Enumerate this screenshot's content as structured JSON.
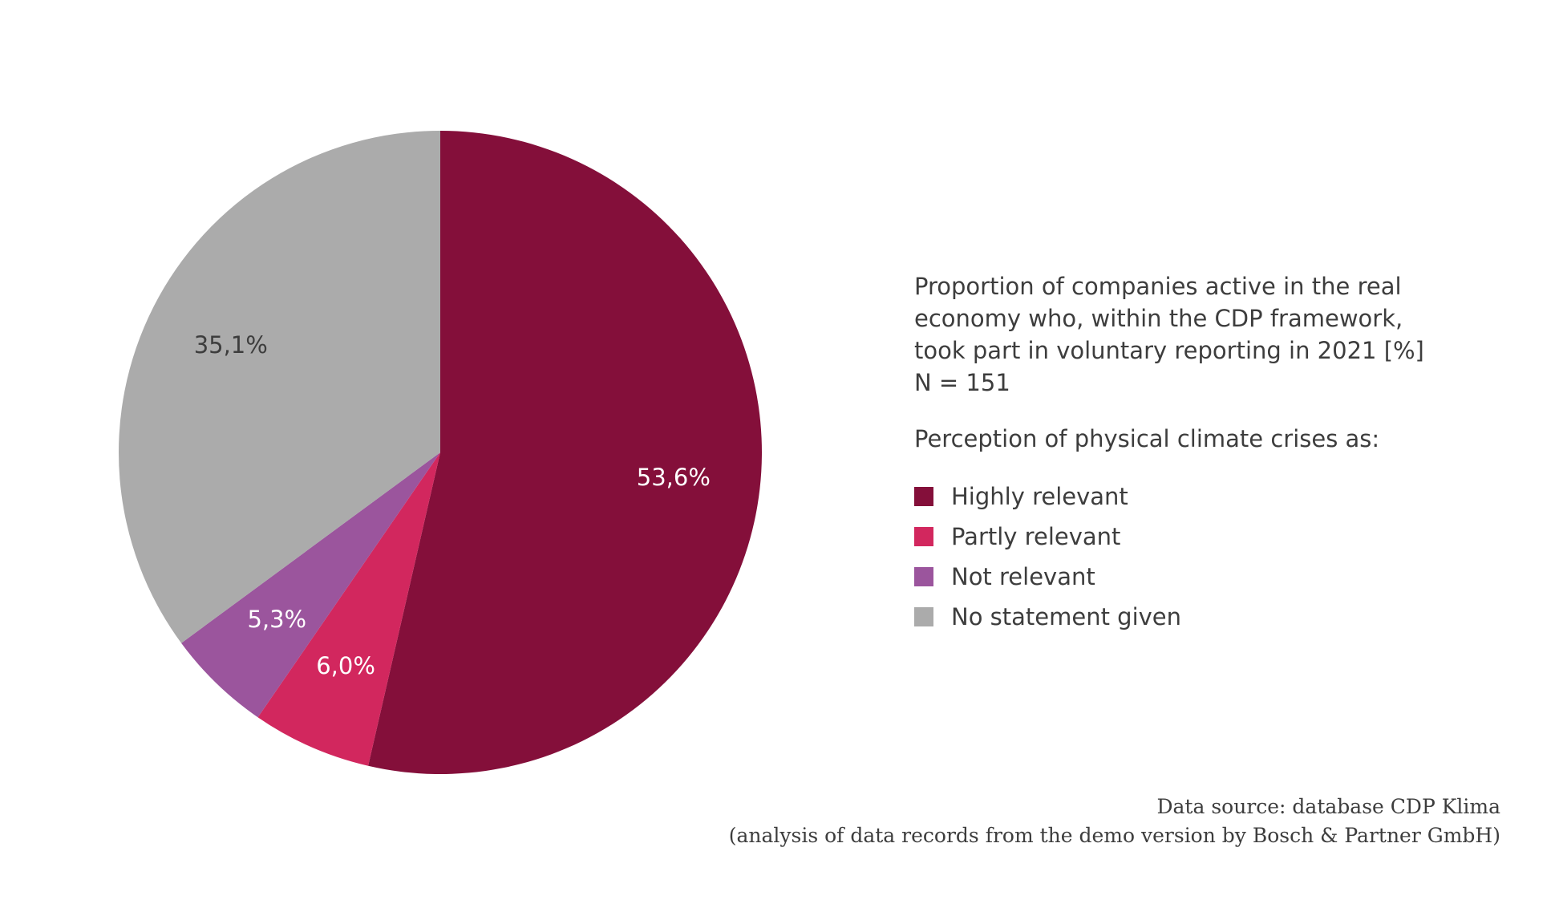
{
  "chart_data": {
    "type": "pie",
    "title_lines": [
      "Proportion of companies active in the real",
      "economy who, within the CDP framework,",
      "took part in voluntary reporting in 2021 [%]",
      "N = 151"
    ],
    "legend_title": "Perception of physical climate crises as:",
    "legend_placement": "right",
    "slices": [
      {
        "label": "Highly relevant",
        "value": 53.6,
        "value_label": "53,6%",
        "color": "#840f3a",
        "label_color": "#ffffff"
      },
      {
        "label": "Partly relevant",
        "value": 6.0,
        "value_label": "6,0%",
        "color": "#d2275e",
        "label_color": "#ffffff"
      },
      {
        "label": "Not relevant",
        "value": 5.3,
        "value_label": "5,3%",
        "color": "#9b559d",
        "label_color": "#ffffff"
      },
      {
        "label": "No statement given",
        "value": 35.1,
        "value_label": "35,1%",
        "color": "#ababab",
        "label_color": "#3d3d3d"
      }
    ]
  },
  "source": {
    "line1": "Data source: database CDP Klima",
    "line2": "(analysis of data records from the demo version by Bosch & Partner GmbH)"
  }
}
